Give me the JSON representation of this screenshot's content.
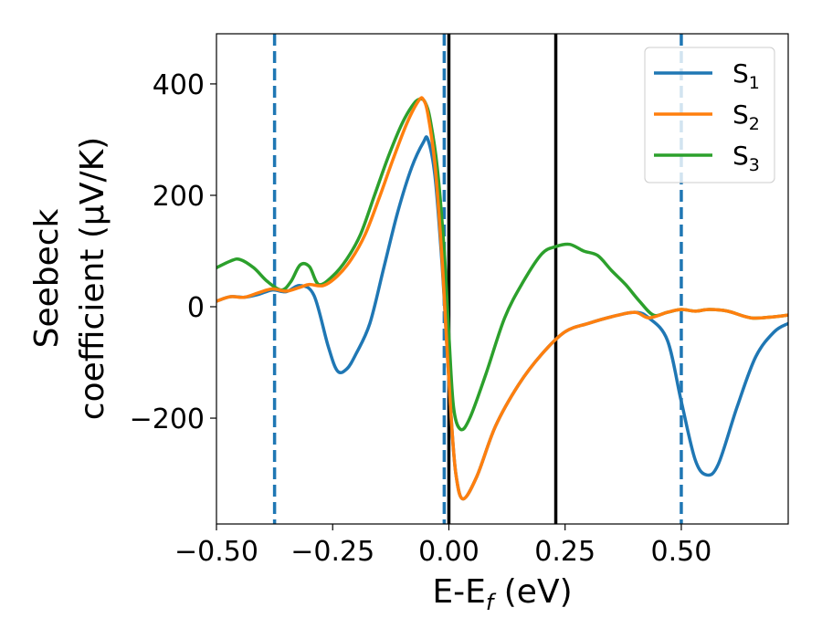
{
  "chart_data": {
    "type": "line",
    "xlabel": "E-E",
    "xlabel_sub": "f",
    "xlabel_unit": " (eV)",
    "ylabel_line1": "Seebeck",
    "ylabel_line2": "coefficient  (μV/K)",
    "xlim": [
      -0.5,
      0.73
    ],
    "ylim": [
      -390,
      490
    ],
    "xticks": [
      -0.5,
      -0.25,
      0.0,
      0.25,
      0.5
    ],
    "xtick_labels": [
      "−0.50",
      "−0.25",
      "0.00",
      "0.25",
      "0.50"
    ],
    "yticks": [
      -200,
      0,
      200,
      400
    ],
    "ytick_labels": [
      "−200",
      "0",
      "200",
      "400"
    ],
    "legend_position": "top-right",
    "grid": false,
    "vlines_dashed": {
      "color": "#1f77b4",
      "x": [
        -0.375,
        -0.01,
        0.5
      ]
    },
    "vlines_solid": {
      "color": "#000000",
      "x": [
        0.0,
        0.23
      ]
    },
    "series": [
      {
        "name": "S",
        "sub": "1",
        "color": "#1f77b4",
        "x": [
          -0.5,
          -0.47,
          -0.44,
          -0.41,
          -0.38,
          -0.35,
          -0.32,
          -0.29,
          -0.26,
          -0.24,
          -0.22,
          -0.2,
          -0.17,
          -0.14,
          -0.11,
          -0.08,
          -0.055,
          -0.045,
          -0.03,
          -0.015,
          -0.005,
          0.005,
          0.015,
          0.03,
          0.06,
          0.1,
          0.15,
          0.2,
          0.25,
          0.3,
          0.35,
          0.4,
          0.43,
          0.47,
          0.5,
          0.53,
          0.555,
          0.58,
          0.62,
          0.66,
          0.7,
          0.73
        ],
        "y": [
          10,
          18,
          17,
          22,
          30,
          27,
          38,
          20,
          -70,
          -115,
          -112,
          -85,
          -30,
          70,
          170,
          250,
          295,
          300,
          235,
          80,
          -60,
          -200,
          -300,
          -345,
          -305,
          -215,
          -140,
          -85,
          -45,
          -30,
          -18,
          -10,
          -20,
          -60,
          -170,
          -275,
          -302,
          -282,
          -180,
          -90,
          -45,
          -30
        ]
      },
      {
        "name": "S",
        "sub": "2",
        "color": "#ff7f0e",
        "x": [
          -0.5,
          -0.47,
          -0.44,
          -0.41,
          -0.38,
          -0.35,
          -0.32,
          -0.3,
          -0.27,
          -0.24,
          -0.21,
          -0.18,
          -0.15,
          -0.12,
          -0.09,
          -0.065,
          -0.055,
          -0.045,
          -0.03,
          -0.015,
          -0.005,
          0.005,
          0.015,
          0.03,
          0.06,
          0.1,
          0.15,
          0.2,
          0.25,
          0.3,
          0.35,
          0.4,
          0.43,
          0.47,
          0.5,
          0.53,
          0.56,
          0.6,
          0.65,
          0.7,
          0.73
        ],
        "y": [
          10,
          18,
          17,
          25,
          32,
          28,
          35,
          40,
          38,
          55,
          85,
          130,
          195,
          265,
          330,
          370,
          372,
          345,
          255,
          90,
          -60,
          -200,
          -300,
          -345,
          -305,
          -215,
          -140,
          -85,
          -45,
          -30,
          -18,
          -10,
          -20,
          -10,
          -5,
          -8,
          -5,
          -8,
          -20,
          -18,
          -15
        ]
      },
      {
        "name": "S",
        "sub": "3",
        "color": "#2ca02c",
        "x": [
          -0.5,
          -0.47,
          -0.45,
          -0.42,
          -0.39,
          -0.36,
          -0.34,
          -0.32,
          -0.3,
          -0.28,
          -0.25,
          -0.22,
          -0.19,
          -0.16,
          -0.13,
          -0.1,
          -0.075,
          -0.06,
          -0.05,
          -0.04,
          -0.025,
          -0.01,
          0.0,
          0.01,
          0.025,
          0.045,
          0.08,
          0.12,
          0.16,
          0.2,
          0.23,
          0.26,
          0.29,
          0.32,
          0.35,
          0.38,
          0.41,
          0.44,
          0.47,
          0.5,
          0.53,
          0.56,
          0.6,
          0.65,
          0.7,
          0.73
        ],
        "y": [
          70,
          82,
          85,
          70,
          45,
          30,
          45,
          75,
          72,
          40,
          55,
          85,
          130,
          200,
          270,
          330,
          365,
          373,
          365,
          335,
          250,
          100,
          -50,
          -180,
          -220,
          -200,
          -120,
          -20,
          45,
          95,
          108,
          112,
          100,
          92,
          65,
          40,
          10,
          -15,
          -10,
          -5,
          -8,
          -5,
          -8,
          -20,
          -18,
          -15
        ]
      }
    ]
  }
}
